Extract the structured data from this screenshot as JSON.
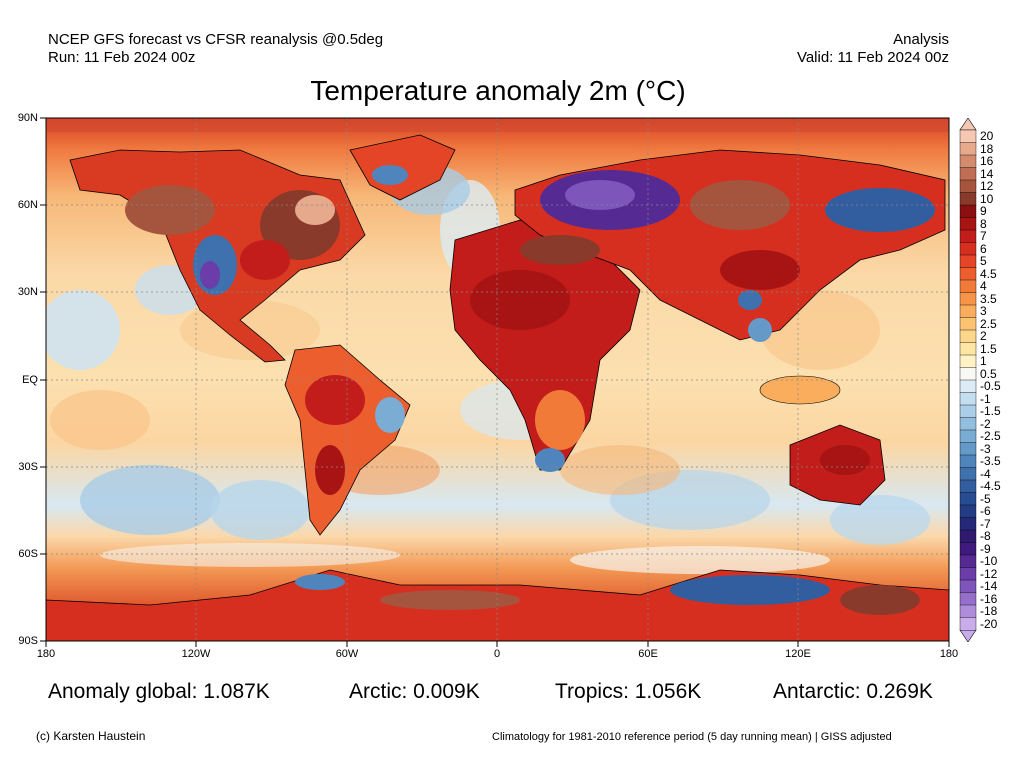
{
  "header": {
    "line1_left": "NCEP GFS forecast vs CFSR reanalysis @0.5deg",
    "line2_left": "Run: 11 Feb 2024 00z",
    "line1_right": "Analysis",
    "line2_right": "Valid: 11 Feb 2024 00z"
  },
  "title": "Temperature anomaly 2m (°C)",
  "axes": {
    "lat_labels": [
      "90N",
      "60N",
      "30N",
      "EQ",
      "30S",
      "60S",
      "90S"
    ],
    "lon_labels": [
      "180",
      "120W",
      "60W",
      "0",
      "60E",
      "120E",
      "180"
    ]
  },
  "colorbar": {
    "labels": [
      "20",
      "18",
      "16",
      "14",
      "12",
      "10",
      "9",
      "8",
      "7",
      "6",
      "5",
      "4.5",
      "4",
      "3.5",
      "3",
      "2.5",
      "2",
      "1.5",
      "1",
      "0.5",
      "-0.5",
      "-1",
      "-1.5",
      "-2",
      "-2.5",
      "-3",
      "-3.5",
      "-4",
      "-4.5",
      "-5",
      "-6",
      "-7",
      "-8",
      "-9",
      "-10",
      "-12",
      "-14",
      "-16",
      "-18",
      "-20"
    ],
    "colors": [
      "#f6c8b4",
      "#e6a98c",
      "#d48a6e",
      "#bf6e55",
      "#a5543e",
      "#8a3a2a",
      "#8a0f10",
      "#a81414",
      "#c21d1a",
      "#d62f20",
      "#e44527",
      "#ec5e2e",
      "#f17a39",
      "#f69449",
      "#f9ad5d",
      "#fbc272",
      "#fcd68b",
      "#fde6a4",
      "#fef2c6",
      "#f8f8f4",
      "#dcebf5",
      "#c4def0",
      "#abcfe8",
      "#93bfdf",
      "#7aacd4",
      "#6499c8",
      "#4f85bc",
      "#3f71ae",
      "#325ea0",
      "#284c92",
      "#243b86",
      "#26297a",
      "#301a70",
      "#3f1a7c",
      "#552a92",
      "#6a3da8",
      "#7e55bb",
      "#966fcc",
      "#b08ddb",
      "#c9acea"
    ]
  },
  "stats": {
    "global": "Anomaly global: 1.087K",
    "arctic": "Arctic: 0.009K",
    "tropics": "Tropics: 1.056K",
    "antarctic": "Antarctic: 0.269K"
  },
  "footer": {
    "credit": "(c) Karsten Haustein",
    "climatology": "Climatology for 1981-2010 reference period (5 day running mean) | GISS adjusted"
  }
}
